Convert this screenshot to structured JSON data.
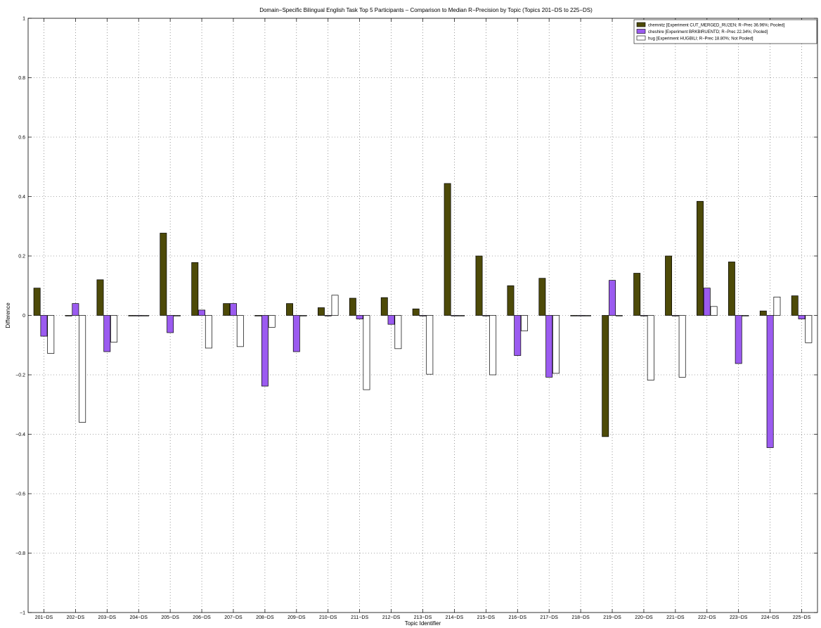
{
  "chart_data": {
    "type": "bar",
    "title": "Domain−Specific Bilingual English Task Top 5 Participants – Comparison to Median R−Precision by Topic (Topics 201−DS to 225−DS)",
    "xlabel": "Topic Identifier",
    "ylabel": "Difference",
    "ylim": [
      -1,
      1
    ],
    "yticks": [
      -1,
      -0.8,
      -0.6,
      -0.4,
      -0.2,
      0,
      0.2,
      0.4,
      0.6,
      0.8,
      1
    ],
    "grid": true,
    "legend_position": "top-right",
    "categories": [
      "201−DS",
      "202−DS",
      "203−DS",
      "204−DS",
      "205−DS",
      "206−DS",
      "207−DS",
      "208−DS",
      "209−DS",
      "210−DS",
      "211−DS",
      "212−DS",
      "213−DS",
      "214−DS",
      "215−DS",
      "216−DS",
      "217−DS",
      "218−DS",
      "219−DS",
      "220−DS",
      "221−DS",
      "222−DS",
      "223−DS",
      "224−DS",
      "225−DS"
    ],
    "series": [
      {
        "name": "chemnitz [Experiment CUT_MERGED_RU2EN; R−Prec 36.96%; Pooled]",
        "color": "#4d4a08",
        "values": [
          0.092,
          0.0,
          0.12,
          0.0,
          0.277,
          0.178,
          0.04,
          0.0,
          0.04,
          0.026,
          0.058,
          0.06,
          0.022,
          0.444,
          0.2,
          0.1,
          0.125,
          0.0,
          -0.408,
          0.142,
          0.2,
          0.384,
          0.18,
          0.015,
          0.066
        ]
      },
      {
        "name": "cheshire [Experiment BRKBIRUENTD; R−Prec 22.34%; Pooled]",
        "color": "#9b5bf0",
        "values": [
          -0.07,
          0.04,
          -0.122,
          0.0,
          -0.058,
          0.018,
          0.04,
          -0.238,
          -0.122,
          0.0,
          -0.012,
          -0.03,
          0.0,
          0.0,
          0.0,
          -0.135,
          -0.208,
          0.0,
          0.118,
          0.0,
          0.0,
          0.092,
          -0.162,
          -0.445,
          -0.012
        ]
      },
      {
        "name": "hug [Experiment HUGBILI; R−Prec 18.80%; Not Pooled]",
        "color": "#ffffff",
        "values": [
          -0.128,
          -0.36,
          -0.09,
          0.0,
          0.0,
          -0.11,
          -0.105,
          -0.04,
          0.0,
          0.068,
          -0.25,
          -0.112,
          -0.198,
          0.0,
          -0.2,
          -0.052,
          -0.195,
          0.0,
          0.0,
          -0.218,
          -0.208,
          0.03,
          0.0,
          0.062,
          -0.092
        ]
      }
    ]
  }
}
